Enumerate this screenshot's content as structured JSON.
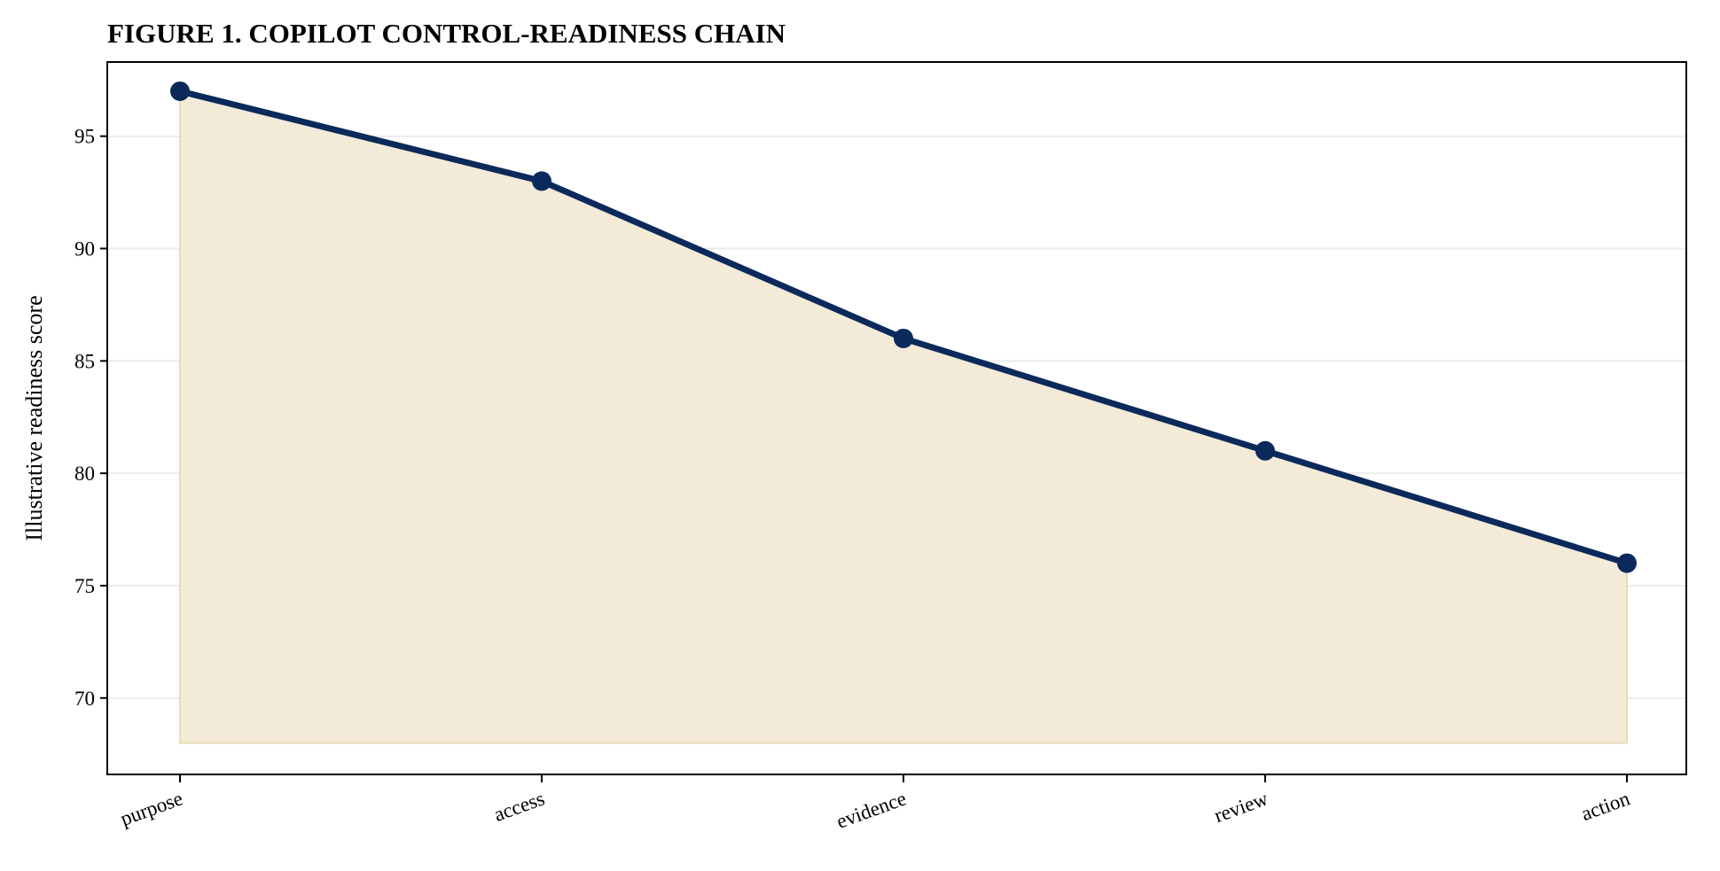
{
  "chart_data": {
    "type": "area",
    "title": "FIGURE 1. COPILOT CONTROL-READINESS CHAIN",
    "xlabel": "",
    "ylabel": "Illustrative readiness score",
    "categories": [
      "purpose",
      "access",
      "evidence",
      "review",
      "action"
    ],
    "series": [
      {
        "values": [
          97,
          93,
          86,
          81,
          76
        ]
      }
    ],
    "fill_baseline": 68,
    "ylim": [
      66.6,
      98.3
    ],
    "yticks": [
      70,
      75,
      80,
      85,
      90,
      95
    ],
    "grid": "horizontal",
    "legend": "none",
    "colors": {
      "line": "#0b2a5b",
      "fill": "#f3ead8",
      "fill_edge": "#eadcb4",
      "grid": "#ececec"
    }
  }
}
